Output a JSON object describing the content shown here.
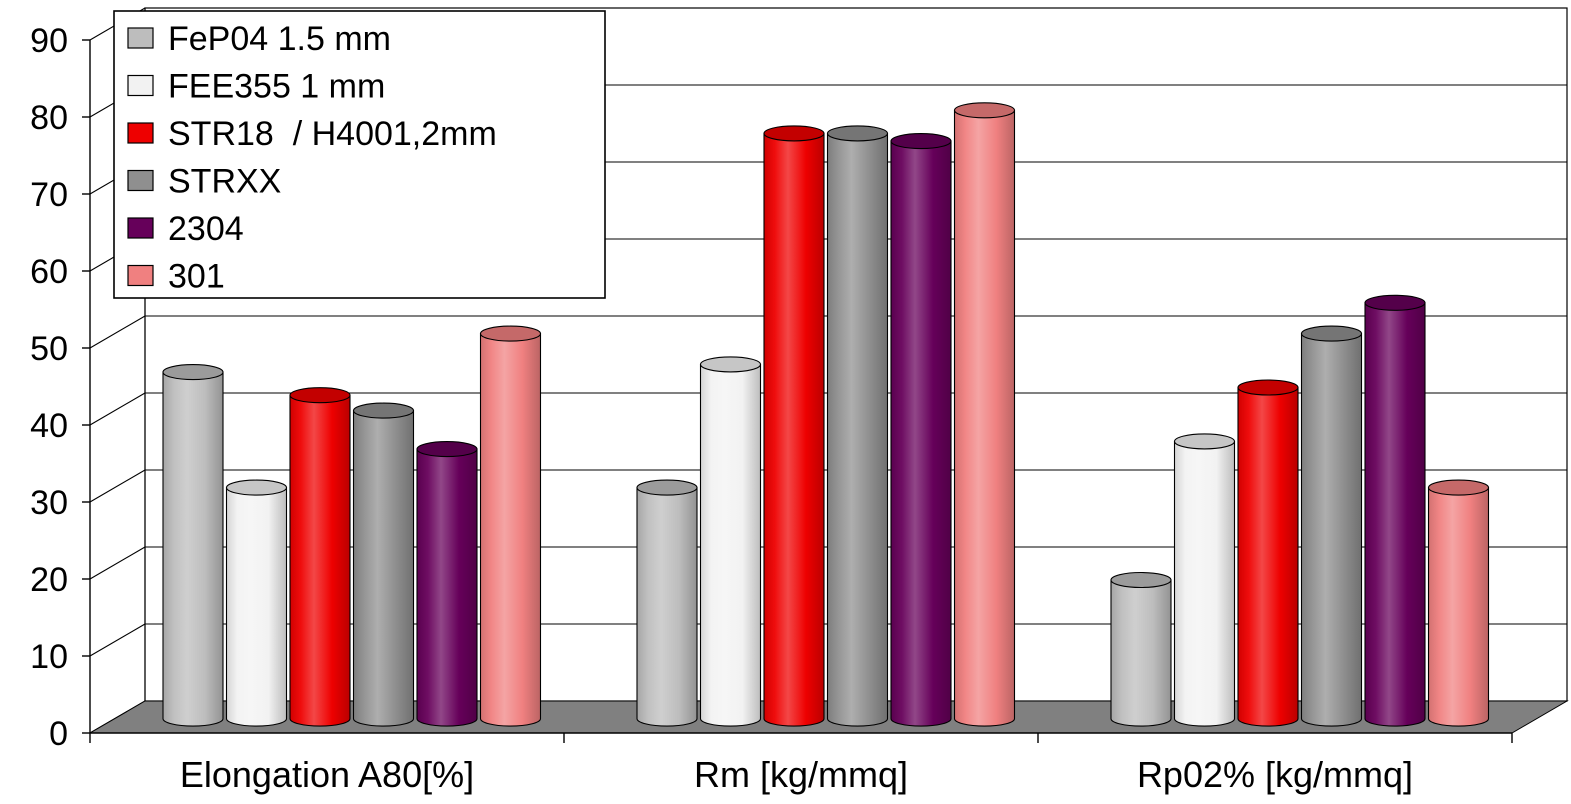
{
  "chart_data": {
    "type": "bar",
    "style": "3d-cylinder",
    "categories": [
      "Elongation A80[%]",
      "Rm [kg/mmq]",
      "Rp02% [kg/mmq]"
    ],
    "series": [
      {
        "name": "FeP04 1.5 mm",
        "color": "#bdbdbd",
        "values": [
          45,
          30,
          18
        ]
      },
      {
        "name": "FEE355 1 mm",
        "color": "#f2f2f2",
        "values": [
          30,
          46,
          36
        ]
      },
      {
        "name": "STR18  / H4001,2mm",
        "color": "#ee0000",
        "values": [
          42,
          76,
          43
        ]
      },
      {
        "name": "STRXX",
        "color": "#8f8f8f",
        "values": [
          40,
          76,
          50
        ]
      },
      {
        "name": "2304",
        "color": "#66005a",
        "values": [
          35,
          75,
          54
        ]
      },
      {
        "name": "301",
        "color": "#f08080",
        "values": [
          50,
          79,
          30
        ]
      }
    ],
    "ylim": [
      0,
      90
    ],
    "yticks": [
      "0",
      "10",
      "20",
      "30",
      "40",
      "50",
      "60",
      "70",
      "80",
      "90"
    ],
    "title": "",
    "xlabel": "",
    "ylabel": "",
    "grid": true,
    "legend_position": "top-left",
    "floor_color": "#808080"
  }
}
